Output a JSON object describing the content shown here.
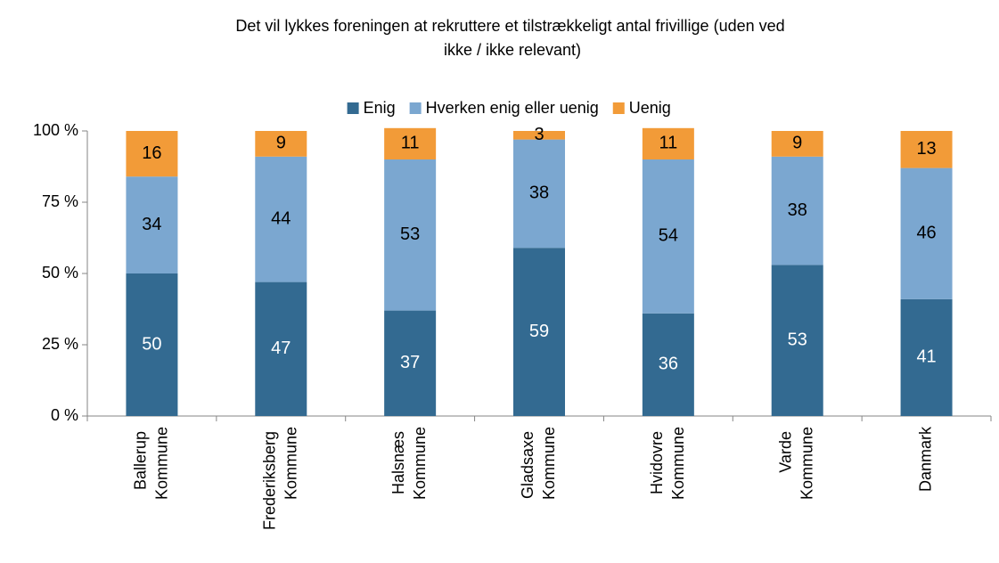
{
  "chart_data": {
    "type": "stacked_bar",
    "title": "Det vil lykkes foreningen at rekruttere et tilstrækkeligt antal frivillige (uden ved ikke / ikke relevant)",
    "categories": [
      "Ballerup Kommune",
      "Frederiksberg Kommune",
      "Halsnæs Kommune",
      "Gladsaxe Kommune",
      "Hvidovre Kommune",
      "Varde Kommune",
      "Danmark"
    ],
    "series": [
      {
        "name": "Enig",
        "color": "#336a91",
        "values": [
          50,
          47,
          37,
          59,
          36,
          53,
          41
        ]
      },
      {
        "name": "Hverken enig eller uenig",
        "color": "#7ba7d0",
        "values": [
          34,
          44,
          53,
          38,
          54,
          38,
          46
        ]
      },
      {
        "name": "Uenig",
        "color": "#f29b38",
        "values": [
          16,
          9,
          11,
          3,
          11,
          9,
          13
        ]
      }
    ],
    "ylim": [
      0,
      100
    ],
    "yticks": [
      {
        "value": 0,
        "label": "0 %"
      },
      {
        "value": 25,
        "label": "25 %"
      },
      {
        "value": 50,
        "label": "50 %"
      },
      {
        "value": 75,
        "label": "75 %"
      },
      {
        "value": 100,
        "label": "100 %"
      }
    ],
    "legend": "top"
  }
}
